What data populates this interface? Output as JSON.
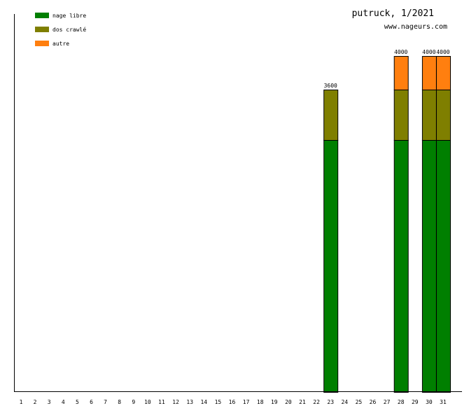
{
  "header": {
    "title": "putruck, 1/2021",
    "site": "www.nageurs.com"
  },
  "colors": {
    "nage_libre": "#007f00",
    "dos_crawle": "#7f7f00",
    "autre": "#ff7f0f",
    "axis": "#000000"
  },
  "chart_data": {
    "type": "bar",
    "stacked": true,
    "categories": [
      "1",
      "2",
      "3",
      "4",
      "5",
      "6",
      "7",
      "8",
      "9",
      "10",
      "11",
      "12",
      "13",
      "14",
      "15",
      "16",
      "17",
      "18",
      "19",
      "20",
      "21",
      "22",
      "23",
      "24",
      "25",
      "26",
      "27",
      "28",
      "29",
      "30",
      "31"
    ],
    "series": [
      {
        "name": "nage libre",
        "color": "#007f00",
        "values": [
          0,
          0,
          0,
          0,
          0,
          0,
          0,
          0,
          0,
          0,
          0,
          0,
          0,
          0,
          0,
          0,
          0,
          0,
          0,
          0,
          0,
          0,
          3000,
          0,
          0,
          0,
          0,
          3000,
          0,
          3000,
          3000
        ]
      },
      {
        "name": "dos crawlé",
        "color": "#7f7f00",
        "values": [
          0,
          0,
          0,
          0,
          0,
          0,
          0,
          0,
          0,
          0,
          0,
          0,
          0,
          0,
          0,
          0,
          0,
          0,
          0,
          0,
          0,
          0,
          600,
          0,
          0,
          0,
          0,
          600,
          0,
          600,
          600
        ]
      },
      {
        "name": "autre",
        "color": "#ff7f0f",
        "values": [
          0,
          0,
          0,
          0,
          0,
          0,
          0,
          0,
          0,
          0,
          0,
          0,
          0,
          0,
          0,
          0,
          0,
          0,
          0,
          0,
          0,
          0,
          0,
          0,
          0,
          0,
          0,
          400,
          0,
          400,
          400
        ]
      }
    ],
    "totals": [
      {
        "day": "23",
        "label": "3600"
      },
      {
        "day": "28",
        "label": "4000"
      },
      {
        "day": "30",
        "label": "4000"
      },
      {
        "day": "31",
        "label": "4000"
      }
    ],
    "ylim": [
      0,
      4000
    ],
    "legend_position": "top-left",
    "grid": false
  }
}
